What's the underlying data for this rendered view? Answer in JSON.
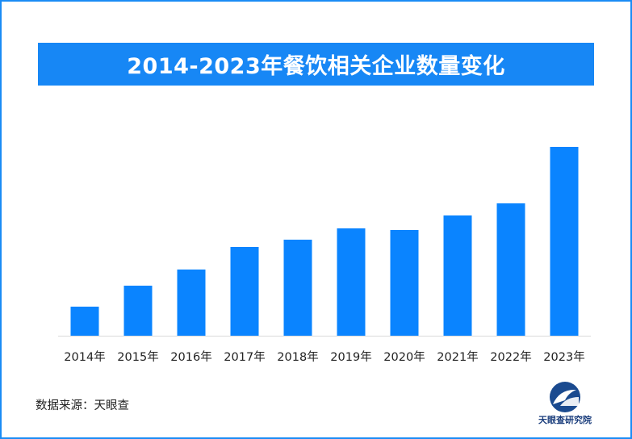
{
  "chart_data": {
    "type": "bar",
    "title": "2014-2023年餐饮相关企业数量变化",
    "categories": [
      "2014年",
      "2015年",
      "2016年",
      "2017年",
      "2018年",
      "2019年",
      "2020年",
      "2021年",
      "2022年",
      "2023年"
    ],
    "values": [
      36,
      62,
      82,
      110,
      119,
      133,
      131,
      149,
      164,
      234
    ],
    "ylim": [
      0,
      250
    ],
    "grid": false,
    "colors": {
      "bar": "#0a84ff",
      "axis": "#d9d9d9"
    }
  },
  "source_text": "数据来源：天眼查",
  "logo": {
    "name": "tianyancha-logo-icon",
    "text": "天眼查研究院"
  }
}
